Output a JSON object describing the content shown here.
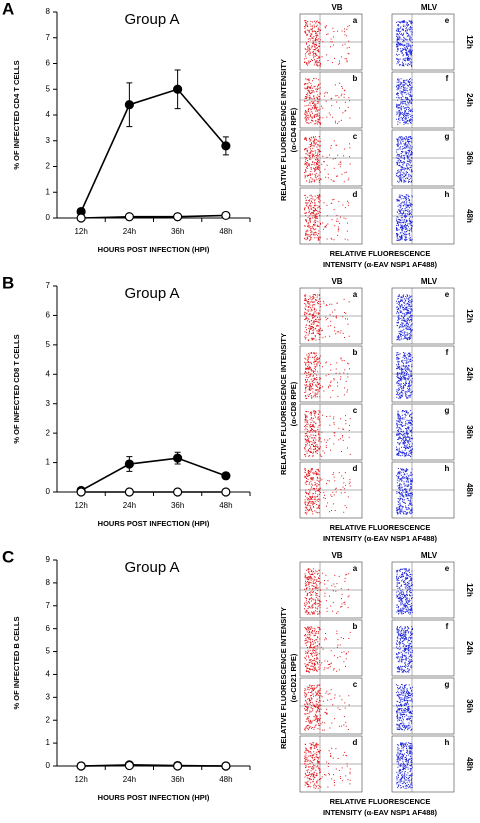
{
  "chart_data": [
    {
      "type": "line",
      "panel": "A",
      "title": "Group A",
      "x_label": "HOURS POST INFECTION (HPI)",
      "y_label": "% OF INFECTED CD4 T CELLS",
      "categories": [
        "12h",
        "24h",
        "36h",
        "48h"
      ],
      "ylim": [
        0,
        8
      ],
      "yticks": [
        0,
        1,
        2,
        3,
        4,
        5,
        6,
        7,
        8
      ],
      "series": [
        {
          "name": "VB",
          "color": "#000000",
          "marker": "filled",
          "values": [
            0.25,
            4.4,
            5.0,
            2.8
          ],
          "errors": [
            0.05,
            0.85,
            0.75,
            0.35
          ]
        },
        {
          "name": "MLV",
          "color": "#000000",
          "marker": "open",
          "values": [
            0,
            0.05,
            0.05,
            0.1
          ]
        }
      ]
    },
    {
      "type": "line",
      "panel": "B",
      "title": "Group A",
      "x_label": "HOURS POST INFECTION (HPI)",
      "y_label": "% OF INFECTED CD8 T CELLS",
      "categories": [
        "12h",
        "24h",
        "36h",
        "48h"
      ],
      "ylim": [
        0,
        7
      ],
      "yticks": [
        0,
        1,
        2,
        3,
        4,
        5,
        6,
        7
      ],
      "series": [
        {
          "name": "VB",
          "color": "#000000",
          "marker": "filled",
          "values": [
            0.05,
            0.95,
            1.15,
            0.55
          ],
          "errors": [
            0,
            0.25,
            0.2,
            0.1
          ]
        },
        {
          "name": "MLV",
          "color": "#000000",
          "marker": "open",
          "values": [
            0,
            0,
            0,
            0
          ]
        }
      ]
    },
    {
      "type": "line",
      "panel": "C",
      "title": "Group A",
      "x_label": "HOURS POST INFECTION (HPI)",
      "y_label": "% OF INFECTED B CELLS",
      "categories": [
        "12h",
        "24h",
        "36h",
        "48h"
      ],
      "ylim": [
        0,
        9
      ],
      "yticks": [
        0,
        1,
        2,
        3,
        4,
        5,
        6,
        7,
        8,
        9
      ],
      "series": [
        {
          "name": "VB",
          "color": "#000000",
          "marker": "filled",
          "values": [
            0,
            0.05,
            0.02,
            0
          ]
        },
        {
          "name": "MLV",
          "color": "#000000",
          "marker": "open",
          "values": [
            0,
            0.02,
            0,
            0
          ]
        }
      ]
    }
  ],
  "flow_panels": [
    {
      "columns": [
        "VB",
        "MLV"
      ],
      "subpanels": [
        "a",
        "b",
        "c",
        "d",
        "e",
        "f",
        "g",
        "h"
      ],
      "times": [
        "12h",
        "24h",
        "36h",
        "48h"
      ],
      "y_label": [
        "RELATIVE FLUORESCENCE INTENSITY",
        "(α-CD4 RPE)"
      ],
      "x_label": [
        "RELATIVE FLUORESCENCE",
        "INTENSITY (α-EAV NSP1 AF488)"
      ]
    },
    {
      "columns": [
        "VB",
        "MLV"
      ],
      "subpanels": [
        "a",
        "b",
        "c",
        "d",
        "e",
        "f",
        "g",
        "h"
      ],
      "times": [
        "12h",
        "24h",
        "36h",
        "48h"
      ],
      "y_label": [
        "RELATIVE FLUORESCENCE INTENSITY",
        "(α-CD8 RPE)"
      ],
      "x_label": [
        "RELATIVE FLUORESCENCE",
        "INTENSITY (α-EAV NSP1 AF488)"
      ]
    },
    {
      "columns": [
        "VB",
        "MLV"
      ],
      "subpanels": [
        "a",
        "b",
        "c",
        "d",
        "e",
        "f",
        "g",
        "h"
      ],
      "times": [
        "12h",
        "24h",
        "36h",
        "48h"
      ],
      "y_label": [
        "RELATIVE FLUORESCENCE INTENSITY",
        "(α-CD21 RPE)"
      ],
      "x_label": [
        "RELATIVE FLUORESCENCE",
        "INTENSITY (α-EAV NSP1 AF488)"
      ]
    }
  ]
}
